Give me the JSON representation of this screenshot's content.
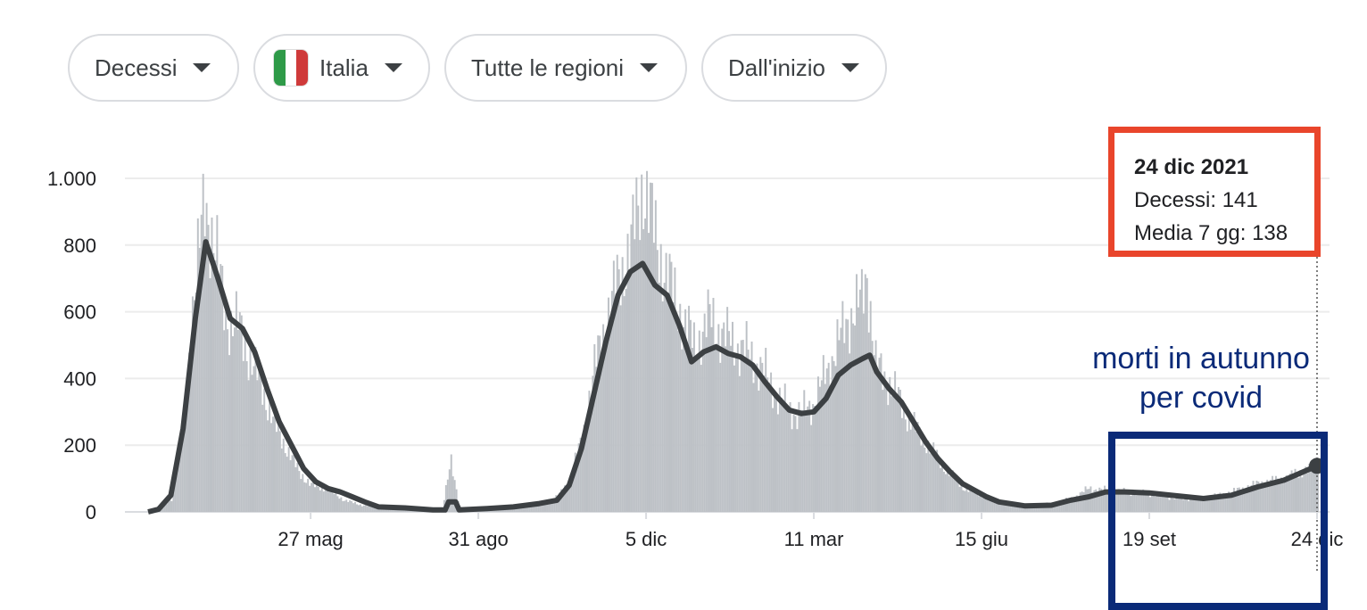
{
  "filters": {
    "metric": "Decessi",
    "country": "Italia",
    "region": "Tutte le regioni",
    "period": "Dall'inizio"
  },
  "colors": {
    "bars": "#bdc1c6",
    "line": "#3c4043",
    "tooltip_border": "#e9452b",
    "annotation": "#0a2a78",
    "flag": [
      "#2e9a48",
      "#ffffff",
      "#cf3a3a"
    ]
  },
  "icons": {
    "dropdown": "caret-down-icon",
    "flag": "italy-flag-icon"
  },
  "tooltip": {
    "date": "24 dic 2021",
    "line1": "Decessi: 141",
    "line2": "Media 7 gg: 138"
  },
  "annotation": {
    "line1": "morti in autunno",
    "line2": "per covid"
  },
  "chart_data": {
    "type": "bar",
    "title": "",
    "xlabel": "",
    "ylabel": "",
    "ylim": [
      0,
      1000
    ],
    "y_ticks": [
      0,
      200,
      400,
      600,
      800,
      1000
    ],
    "y_tick_labels": [
      "0",
      "200",
      "400",
      "600",
      "800",
      "1.000"
    ],
    "x_tick_labels": [
      "27 mag",
      "31 ago",
      "5 dic",
      "11 mar",
      "15 giu",
      "19 set",
      "24 dic"
    ],
    "x_tick_dates": [
      "2020-05-27",
      "2020-08-31",
      "2020-12-05",
      "2021-03-11",
      "2021-06-15",
      "2021-09-19",
      "2021-12-24"
    ],
    "x_range": [
      "2020-02-24",
      "2021-12-24"
    ],
    "grid": true,
    "legend": "none",
    "series": [
      {
        "name": "Decessi",
        "type": "bar",
        "note": "daily values; x as dates",
        "points": [
          [
            "2020-02-24",
            2
          ],
          [
            "2020-03-01",
            5
          ],
          [
            "2020-03-08",
            40
          ],
          [
            "2020-03-15",
            250
          ],
          [
            "2020-03-20",
            630
          ],
          [
            "2020-03-27",
            920
          ],
          [
            "2020-04-01",
            830
          ],
          [
            "2020-04-08",
            580
          ],
          [
            "2020-04-15",
            560
          ],
          [
            "2020-04-22",
            460
          ],
          [
            "2020-04-29",
            370
          ],
          [
            "2020-05-06",
            260
          ],
          [
            "2020-05-13",
            190
          ],
          [
            "2020-05-20",
            120
          ],
          [
            "2020-05-27",
            80
          ],
          [
            "2020-06-05",
            70
          ],
          [
            "2020-06-15",
            35
          ],
          [
            "2020-06-25",
            20
          ],
          [
            "2020-07-10",
            15
          ],
          [
            "2020-07-25",
            10
          ],
          [
            "2020-08-10",
            5
          ],
          [
            "2020-08-15",
            160
          ],
          [
            "2020-08-20",
            8
          ],
          [
            "2020-09-05",
            12
          ],
          [
            "2020-09-20",
            15
          ],
          [
            "2020-10-05",
            22
          ],
          [
            "2020-10-15",
            45
          ],
          [
            "2020-10-22",
            100
          ],
          [
            "2020-10-29",
            220
          ],
          [
            "2020-11-05",
            430
          ],
          [
            "2020-11-12",
            580
          ],
          [
            "2020-11-19",
            700
          ],
          [
            "2020-11-26",
            800
          ],
          [
            "2020-12-03",
            993
          ],
          [
            "2020-12-10",
            820
          ],
          [
            "2020-12-17",
            700
          ],
          [
            "2020-12-24",
            600
          ],
          [
            "2021-01-01",
            500
          ],
          [
            "2021-01-10",
            580
          ],
          [
            "2021-01-20",
            520
          ],
          [
            "2021-01-31",
            480
          ],
          [
            "2021-02-10",
            420
          ],
          [
            "2021-02-20",
            330
          ],
          [
            "2021-03-01",
            290
          ],
          [
            "2021-03-11",
            330
          ],
          [
            "2021-03-20",
            450
          ],
          [
            "2021-03-31",
            590
          ],
          [
            "2021-04-07",
            630
          ],
          [
            "2021-04-10",
            720
          ],
          [
            "2021-04-15",
            440
          ],
          [
            "2021-04-25",
            370
          ],
          [
            "2021-05-05",
            270
          ],
          [
            "2021-05-15",
            200
          ],
          [
            "2021-05-25",
            130
          ],
          [
            "2021-06-05",
            70
          ],
          [
            "2021-06-15",
            50
          ],
          [
            "2021-06-25",
            30
          ],
          [
            "2021-07-10",
            20
          ],
          [
            "2021-07-25",
            25
          ],
          [
            "2021-08-05",
            40
          ],
          [
            "2021-08-15",
            70
          ],
          [
            "2021-08-25",
            65
          ],
          [
            "2021-09-05",
            60
          ],
          [
            "2021-09-19",
            55
          ],
          [
            "2021-10-05",
            40
          ],
          [
            "2021-10-20",
            40
          ],
          [
            "2021-11-05",
            60
          ],
          [
            "2021-11-20",
            85
          ],
          [
            "2021-12-05",
            100
          ],
          [
            "2021-12-24",
            141
          ]
        ]
      },
      {
        "name": "Media 7 gg",
        "type": "line",
        "points": [
          [
            "2020-02-24",
            0
          ],
          [
            "2020-03-01",
            8
          ],
          [
            "2020-03-08",
            50
          ],
          [
            "2020-03-15",
            250
          ],
          [
            "2020-03-22",
            580
          ],
          [
            "2020-03-28",
            810
          ],
          [
            "2020-04-04",
            700
          ],
          [
            "2020-04-11",
            580
          ],
          [
            "2020-04-18",
            550
          ],
          [
            "2020-04-25",
            480
          ],
          [
            "2020-05-02",
            370
          ],
          [
            "2020-05-09",
            270
          ],
          [
            "2020-05-16",
            200
          ],
          [
            "2020-05-23",
            130
          ],
          [
            "2020-05-30",
            90
          ],
          [
            "2020-06-06",
            70
          ],
          [
            "2020-06-13",
            60
          ],
          [
            "2020-06-20",
            45
          ],
          [
            "2020-06-27",
            30
          ],
          [
            "2020-07-05",
            15
          ],
          [
            "2020-07-20",
            12
          ],
          [
            "2020-08-05",
            6
          ],
          [
            "2020-08-12",
            6
          ],
          [
            "2020-08-14",
            30
          ],
          [
            "2020-08-18",
            30
          ],
          [
            "2020-08-20",
            6
          ],
          [
            "2020-09-05",
            10
          ],
          [
            "2020-09-20",
            15
          ],
          [
            "2020-10-05",
            25
          ],
          [
            "2020-10-15",
            35
          ],
          [
            "2020-10-22",
            80
          ],
          [
            "2020-10-29",
            190
          ],
          [
            "2020-11-05",
            350
          ],
          [
            "2020-11-12",
            510
          ],
          [
            "2020-11-19",
            650
          ],
          [
            "2020-11-26",
            720
          ],
          [
            "2020-12-03",
            745
          ],
          [
            "2020-12-10",
            680
          ],
          [
            "2020-12-17",
            650
          ],
          [
            "2020-12-24",
            560
          ],
          [
            "2020-12-31",
            450
          ],
          [
            "2021-01-07",
            480
          ],
          [
            "2021-01-14",
            495
          ],
          [
            "2021-01-21",
            475
          ],
          [
            "2021-01-28",
            465
          ],
          [
            "2021-02-04",
            440
          ],
          [
            "2021-02-11",
            390
          ],
          [
            "2021-02-18",
            345
          ],
          [
            "2021-02-25",
            305
          ],
          [
            "2021-03-04",
            295
          ],
          [
            "2021-03-11",
            300
          ],
          [
            "2021-03-18",
            340
          ],
          [
            "2021-03-25",
            410
          ],
          [
            "2021-04-01",
            440
          ],
          [
            "2021-04-08",
            460
          ],
          [
            "2021-04-12",
            470
          ],
          [
            "2021-04-16",
            420
          ],
          [
            "2021-04-23",
            370
          ],
          [
            "2021-04-30",
            330
          ],
          [
            "2021-05-07",
            270
          ],
          [
            "2021-05-14",
            210
          ],
          [
            "2021-05-21",
            160
          ],
          [
            "2021-05-28",
            120
          ],
          [
            "2021-06-04",
            85
          ],
          [
            "2021-06-11",
            65
          ],
          [
            "2021-06-18",
            45
          ],
          [
            "2021-06-25",
            30
          ],
          [
            "2021-07-10",
            18
          ],
          [
            "2021-07-25",
            20
          ],
          [
            "2021-08-05",
            35
          ],
          [
            "2021-08-15",
            45
          ],
          [
            "2021-08-25",
            60
          ],
          [
            "2021-09-05",
            60
          ],
          [
            "2021-09-19",
            57
          ],
          [
            "2021-10-05",
            48
          ],
          [
            "2021-10-20",
            40
          ],
          [
            "2021-11-05",
            50
          ],
          [
            "2021-11-20",
            75
          ],
          [
            "2021-12-05",
            95
          ],
          [
            "2021-12-24",
            138
          ]
        ]
      }
    ],
    "highlight_point": {
      "date": "2021-12-24",
      "value": 138
    }
  }
}
